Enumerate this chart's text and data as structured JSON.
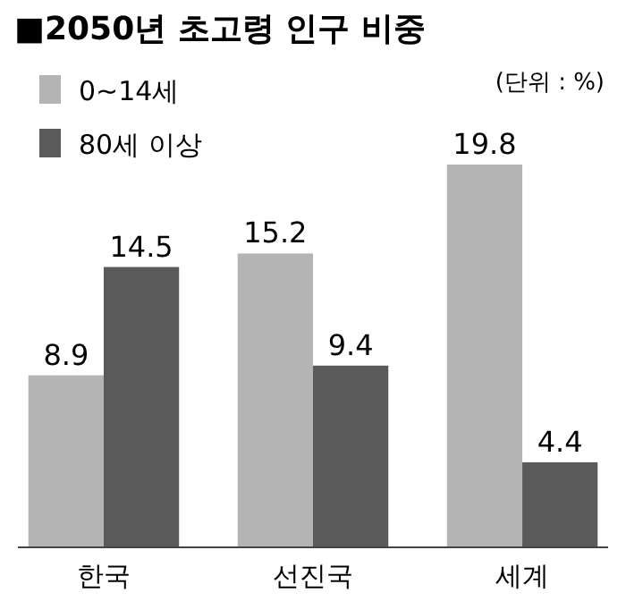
{
  "chart_data": {
    "type": "bar",
    "title": "■2050년 초고령 인구 비중",
    "subtitle": "(단위 : %)",
    "categories": [
      "한국",
      "선진국",
      "세계"
    ],
    "series": [
      {
        "name": "0~14세",
        "color": "#b4b4b4",
        "values": [
          8.9,
          15.2,
          19.8
        ]
      },
      {
        "name": "80세 이상",
        "color": "#5a5a5a",
        "values": [
          14.5,
          9.4,
          4.4
        ]
      }
    ],
    "data_labels": true,
    "legend": "top left"
  }
}
